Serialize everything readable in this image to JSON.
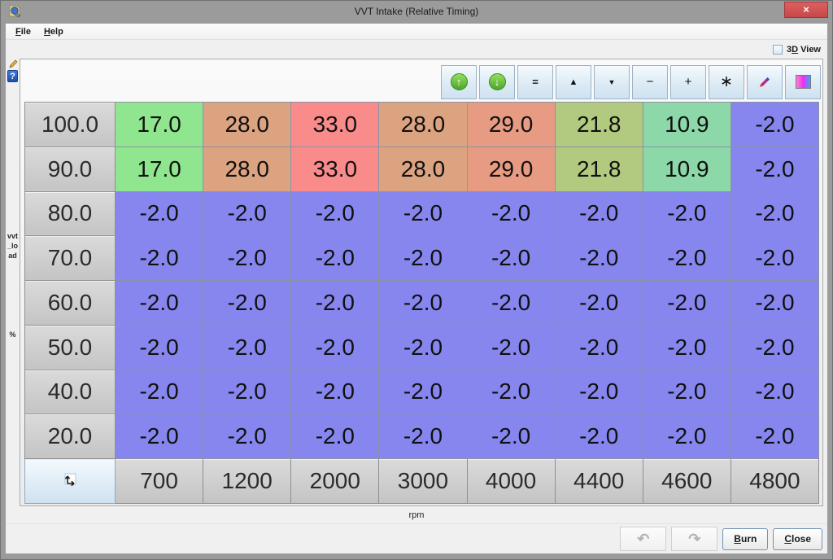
{
  "window": {
    "title": "VVT Intake (Relative Timing)",
    "close_glyph": "×"
  },
  "menu": {
    "file_label": "File",
    "help_label": "Help"
  },
  "view_toggle": {
    "prefix": "3",
    "accelerator": "D",
    "suffix": " View"
  },
  "side": {
    "axis_label": "vvt_load",
    "axis_unit": "%",
    "help_glyph": "?"
  },
  "toolbar": {
    "glyphs": {
      "up_arrow": "↑",
      "down_arrow": "↓",
      "equal": "=",
      "inc": "▲",
      "dec": "▼",
      "minus": "−",
      "plus": "+",
      "multiply": "∗"
    }
  },
  "table": {
    "row_headers": [
      "100.0",
      "90.0",
      "80.0",
      "70.0",
      "60.0",
      "50.0",
      "40.0",
      "20.0"
    ],
    "col_headers": [
      "700",
      "1200",
      "2000",
      "3000",
      "4000",
      "4400",
      "4600",
      "4800"
    ],
    "x_axis_label": "rpm",
    "rows": [
      [
        "17.0",
        "28.0",
        "33.0",
        "28.0",
        "29.0",
        "21.8",
        "10.9",
        "-2.0"
      ],
      [
        "17.0",
        "28.0",
        "33.0",
        "28.0",
        "29.0",
        "21.8",
        "10.9",
        "-2.0"
      ],
      [
        "-2.0",
        "-2.0",
        "-2.0",
        "-2.0",
        "-2.0",
        "-2.0",
        "-2.0",
        "-2.0"
      ],
      [
        "-2.0",
        "-2.0",
        "-2.0",
        "-2.0",
        "-2.0",
        "-2.0",
        "-2.0",
        "-2.0"
      ],
      [
        "-2.0",
        "-2.0",
        "-2.0",
        "-2.0",
        "-2.0",
        "-2.0",
        "-2.0",
        "-2.0"
      ],
      [
        "-2.0",
        "-2.0",
        "-2.0",
        "-2.0",
        "-2.0",
        "-2.0",
        "-2.0",
        "-2.0"
      ],
      [
        "-2.0",
        "-2.0",
        "-2.0",
        "-2.0",
        "-2.0",
        "-2.0",
        "-2.0",
        "-2.0"
      ],
      [
        "-2.0",
        "-2.0",
        "-2.0",
        "-2.0",
        "-2.0",
        "-2.0",
        "-2.0",
        "-2.0"
      ]
    ],
    "cell_colors": [
      [
        "green",
        "tan",
        "red",
        "tan",
        "salmon",
        "olive",
        "mint",
        "blue"
      ],
      [
        "green",
        "tan",
        "red",
        "tan",
        "salmon",
        "olive",
        "mint",
        "blue"
      ],
      [
        "blue",
        "blue",
        "blue",
        "blue",
        "blue",
        "blue",
        "blue",
        "blue"
      ],
      [
        "blue",
        "blue",
        "blue",
        "blue",
        "blue",
        "blue",
        "blue",
        "blue"
      ],
      [
        "blue",
        "blue",
        "blue",
        "blue",
        "blue",
        "blue",
        "blue",
        "blue"
      ],
      [
        "blue",
        "blue",
        "blue",
        "blue",
        "blue",
        "blue",
        "blue",
        "blue"
      ],
      [
        "blue",
        "blue",
        "blue",
        "blue",
        "blue",
        "blue",
        "blue",
        "blue"
      ],
      [
        "blue",
        "blue",
        "blue",
        "blue",
        "blue",
        "blue",
        "blue",
        "blue"
      ]
    ],
    "palette": {
      "green": "#8fe68f",
      "tan": "#dca381",
      "red": "#f98b8b",
      "salmon": "#e69b82",
      "olive": "#b2ca80",
      "mint": "#8cd8a8",
      "blue": "#8686ee"
    }
  },
  "footer": {
    "undo_glyph": "↶",
    "redo_glyph": "↷",
    "burn_label": "Burn",
    "close_label": "Close"
  }
}
